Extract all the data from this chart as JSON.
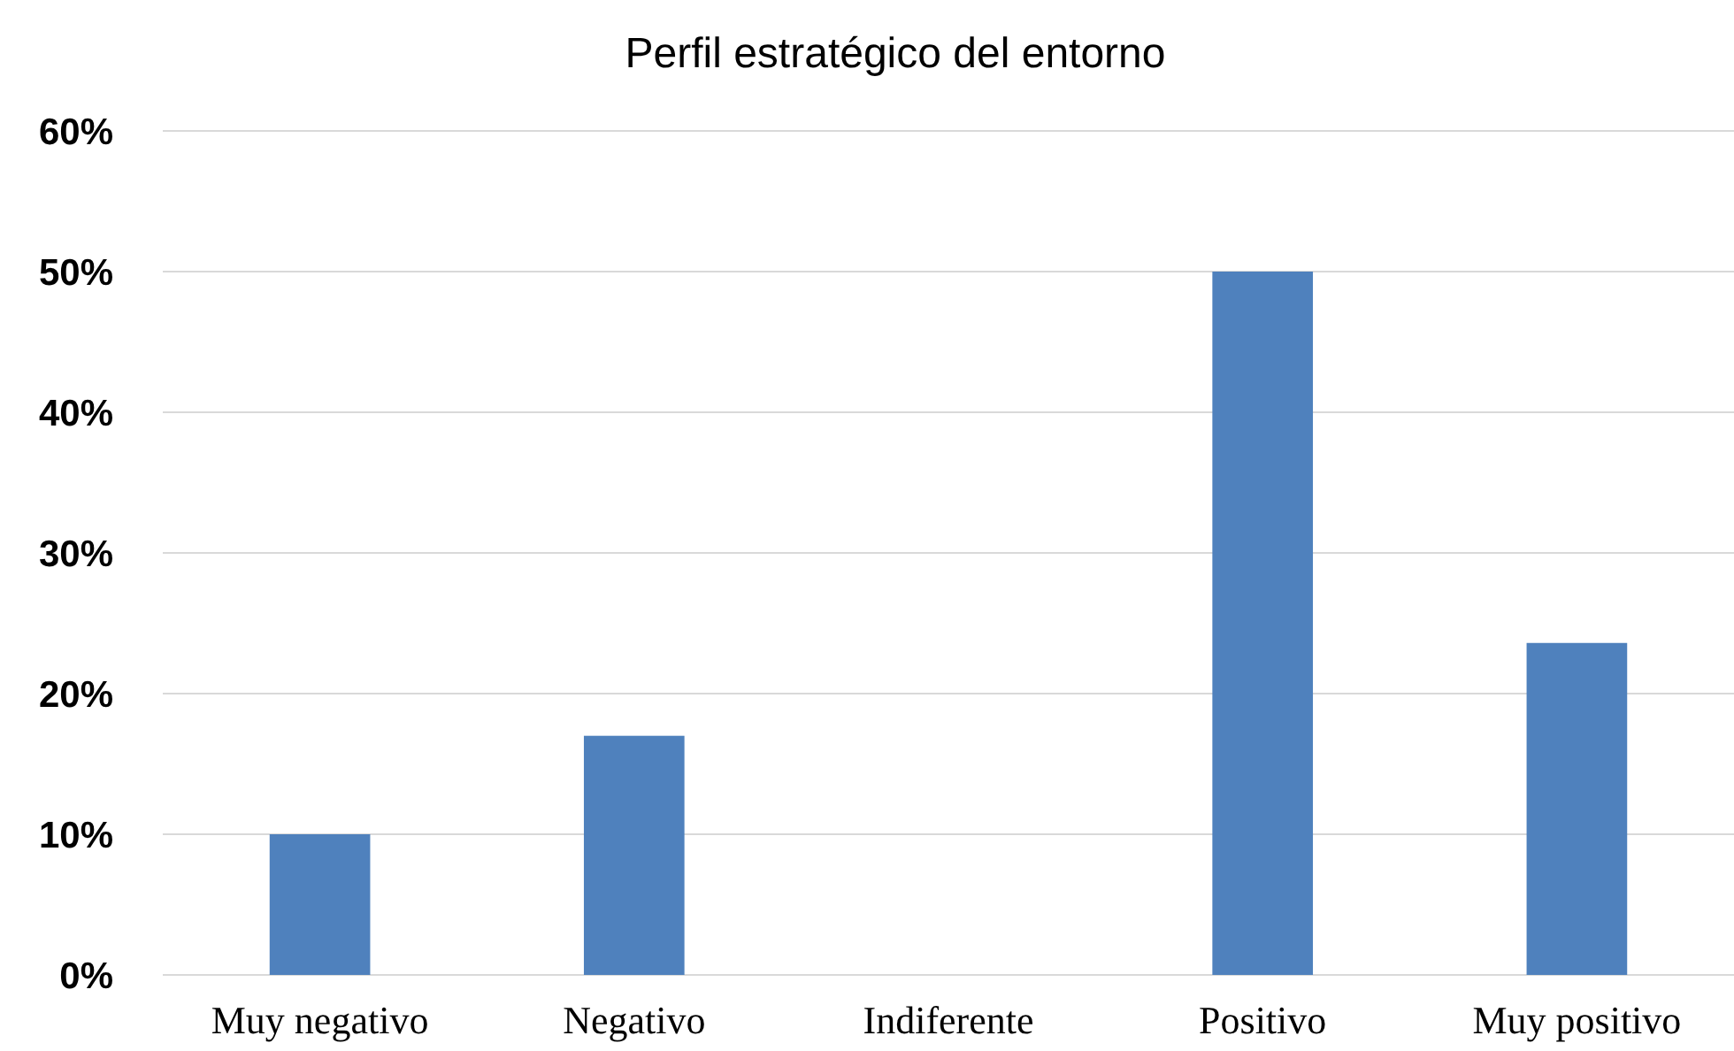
{
  "chart_data": {
    "type": "bar",
    "title": "Perfil estratégico del entorno",
    "categories": [
      "Muy negativo",
      "Negativo",
      "Indiferente",
      "Positivo",
      "Muy positivo"
    ],
    "values": [
      10,
      17,
      0,
      50,
      23.6
    ],
    "color": "#4f81bd",
    "ylim": [
      0,
      60
    ],
    "yticks": [
      {
        "value": 0,
        "label": "0%"
      },
      {
        "value": 10,
        "label": "10%"
      },
      {
        "value": 20,
        "label": "20%"
      },
      {
        "value": 30,
        "label": "30%"
      },
      {
        "value": 40,
        "label": "40%"
      },
      {
        "value": 50,
        "label": "50%"
      },
      {
        "value": 60,
        "label": "60%"
      }
    ],
    "grid": "y"
  }
}
